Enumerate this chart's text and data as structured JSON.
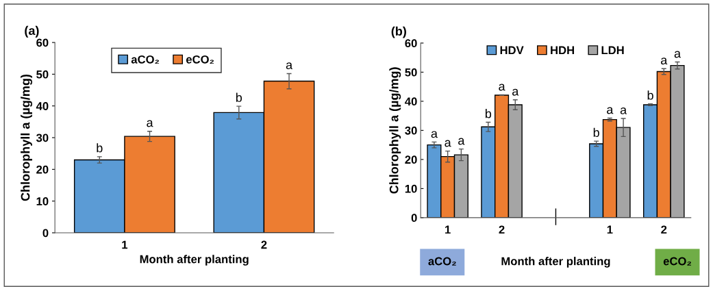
{
  "chart_data": [
    {
      "type": "bar",
      "title": "(a)",
      "xlabel": "Month after planting",
      "ylabel": "Chlorophyll a (µg/mg)",
      "categories": [
        "1",
        "2"
      ],
      "ylim": [
        0,
        60
      ],
      "yticks": [
        0,
        10,
        20,
        30,
        40,
        50,
        60
      ],
      "legend": "top",
      "grid": false,
      "series": [
        {
          "name": "aCO₂",
          "color": "#5b9bd5",
          "values": [
            23.0,
            37.9
          ],
          "errors": [
            1.0,
            2.0
          ],
          "value_labels": [
            "b",
            "b"
          ]
        },
        {
          "name": "eCO₂",
          "color": "#ed7d31",
          "values": [
            30.4,
            47.8
          ],
          "errors": [
            1.6,
            2.4
          ],
          "value_labels": [
            "a",
            "a"
          ]
        }
      ]
    },
    {
      "type": "bar",
      "title": "(b)",
      "xlabel": "Month after planting",
      "ylabel": "Chlorophyll a (µg/mg)",
      "categories": [
        "1",
        "2",
        null,
        "1",
        "2"
      ],
      "ylim": [
        0,
        60
      ],
      "yticks": [
        0,
        10,
        20,
        30,
        40,
        50,
        60
      ],
      "legend": "top",
      "grid": false,
      "annotations": [
        "aCO₂",
        "eCO₂"
      ],
      "series": [
        {
          "name": "HDV",
          "color": "#5b9bd5",
          "values": [
            25.0,
            31.2,
            null,
            25.4,
            38.8
          ],
          "errors": [
            1.0,
            1.6,
            null,
            0.9,
            0.3
          ],
          "value_labels": [
            "a",
            "b",
            null,
            "b",
            "b"
          ]
        },
        {
          "name": "HDH",
          "color": "#ed7d31",
          "values": [
            21.0,
            42.1,
            null,
            33.7,
            50.2
          ],
          "errors": [
            1.9,
            0.1,
            null,
            0.5,
            1.0
          ],
          "value_labels": [
            "a",
            "a",
            null,
            "a",
            "a"
          ]
        },
        {
          "name": "LDH",
          "color": "#a5a5a5",
          "values": [
            21.6,
            38.8,
            null,
            31.0,
            52.3
          ],
          "errors": [
            2.0,
            1.7,
            null,
            3.1,
            1.2
          ],
          "value_labels": [
            "a",
            "a",
            null,
            "a",
            "a"
          ]
        }
      ]
    }
  ]
}
